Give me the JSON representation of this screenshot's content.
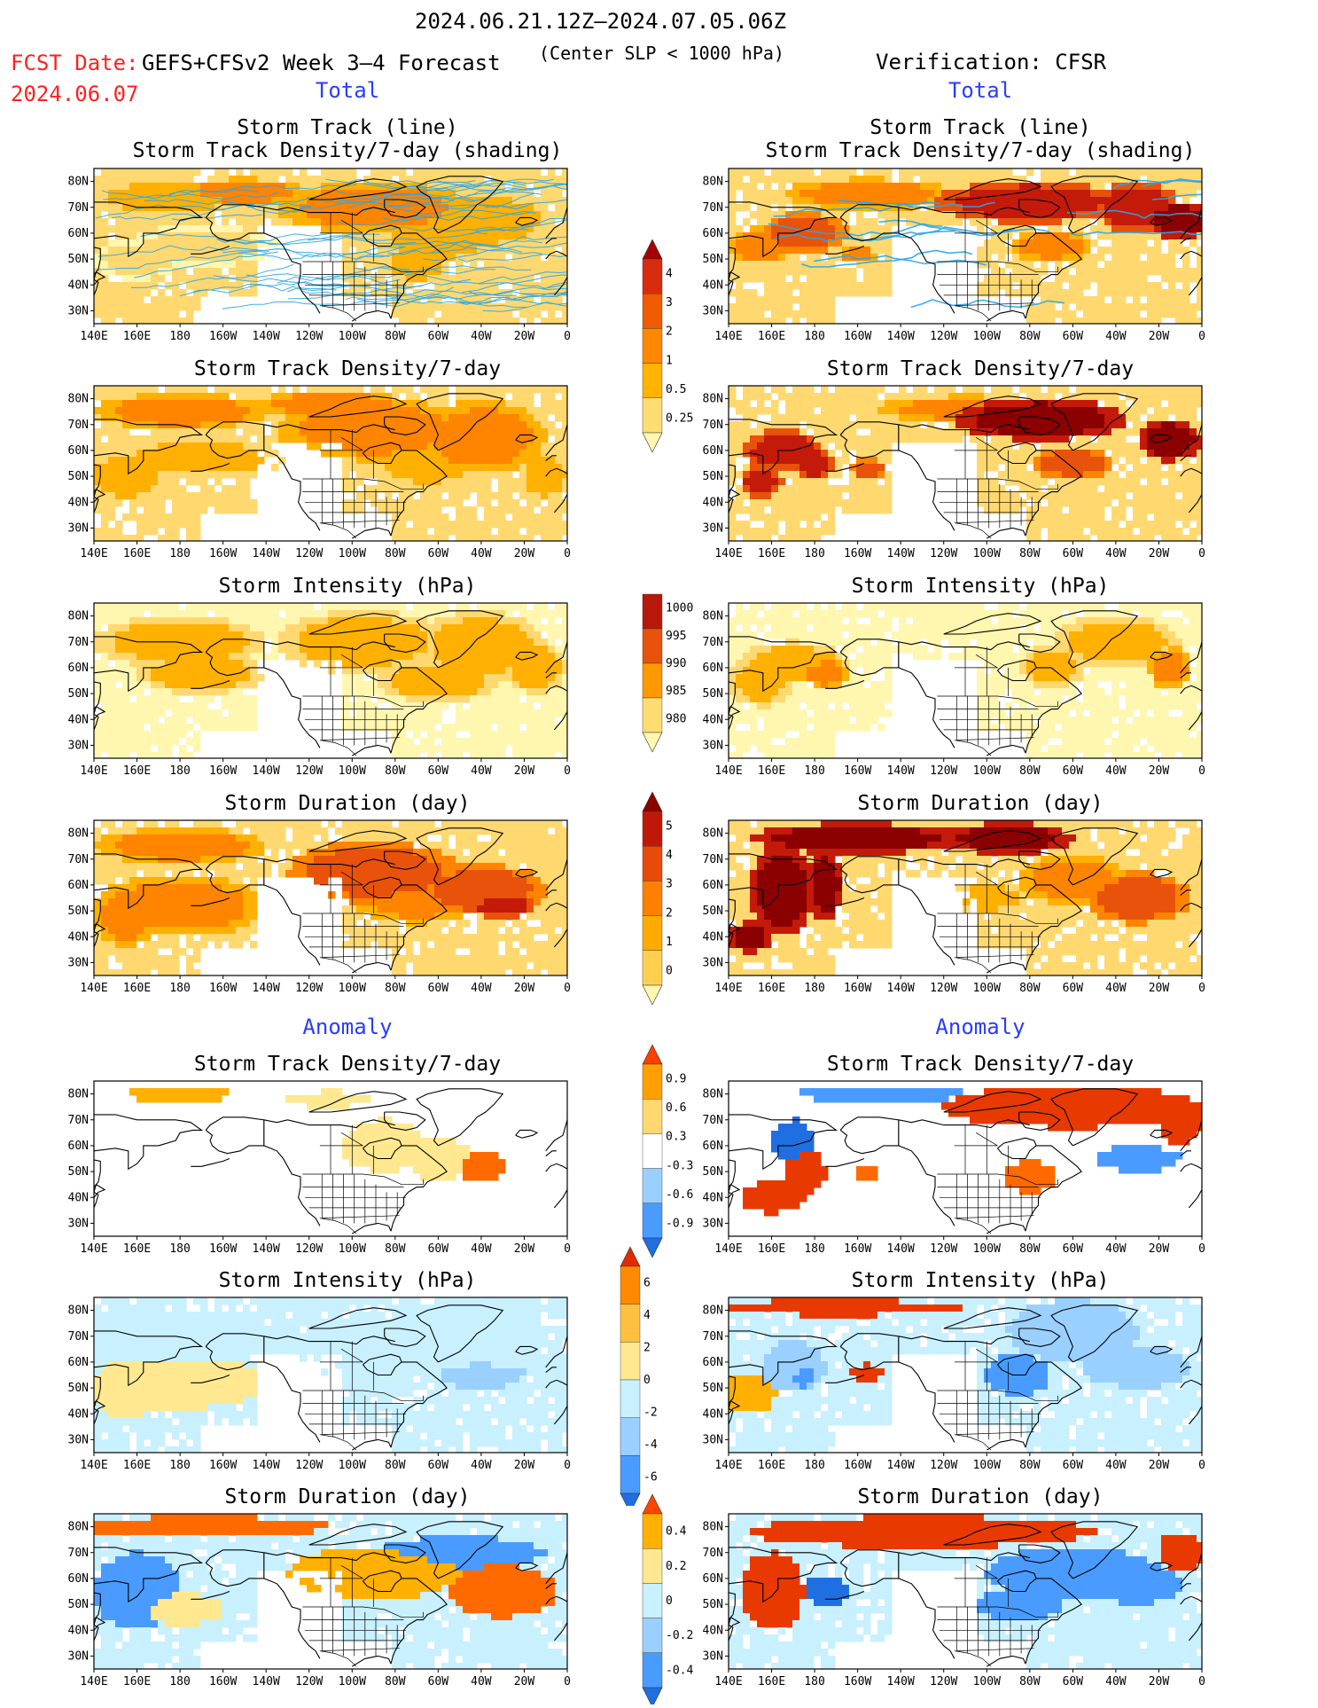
{
  "header": {
    "period": "2024.06.21.12Z–2024.07.05.06Z",
    "fcst_label": "FCST Date:",
    "model": "GEFS+CFSv2 Week 3–4 Forecast",
    "center_slp": "(Center SLP < 1000 hPa)",
    "verification": "Verification: CFSR",
    "fcst_date": "2024.06.07"
  },
  "sections": {
    "total_left": "Total",
    "total_right": "Total",
    "anomaly_left": "Anomaly",
    "anomaly_right": "Anomaly"
  },
  "titles": {
    "track_line": "Storm Track (line)",
    "track_density_shading": "Storm Track Density/7-day (shading)",
    "track_density": "Storm Track Density/7-day",
    "intensity": "Storm Intensity (hPa)",
    "duration": "Storm Duration (day)"
  },
  "axes": {
    "lat_labels": [
      "80N",
      "70N",
      "60N",
      "50N",
      "40N",
      "30N"
    ],
    "lon_labels": [
      "140E",
      "160E",
      "180",
      "160W",
      "140W",
      "120W",
      "100W",
      "80W",
      "60W",
      "40W",
      "20W",
      "0"
    ]
  },
  "colorbars": {
    "density_total": {
      "labels": [
        "4",
        "3",
        "2",
        "1",
        "0.5",
        "0.25"
      ],
      "colors": [
        "#fff6b0",
        "#ffdd70",
        "#ffb400",
        "#ff8800",
        "#f05a00",
        "#d82c0e",
        "#a80000"
      ]
    },
    "intensity_total": {
      "labels": [
        "1000",
        "995",
        "990",
        "985",
        "980"
      ],
      "colors": [
        "#fff6b0",
        "#ffdd70",
        "#ff9900",
        "#e8520a",
        "#b8180a",
        "#8b0000"
      ]
    },
    "duration_total": {
      "labels": [
        "5",
        "4",
        "3",
        "2",
        "1",
        "0"
      ],
      "colors": [
        "#fff6b0",
        "#ffd050",
        "#ffaa00",
        "#ff8000",
        "#e84a0a",
        "#c01808",
        "#8b0000"
      ]
    },
    "density_anom": {
      "labels": [
        "0.9",
        "0.6",
        "0.3",
        "-0.3",
        "-0.6",
        "-0.9"
      ],
      "colors": [
        "#1f6fe0",
        "#4a9bff",
        "#9ad0ff",
        "#ffffff",
        "#ffd870",
        "#ffa000",
        "#ff3f00"
      ]
    },
    "intensity_anom": {
      "labels": [
        "6",
        "4",
        "2",
        "0",
        "-2",
        "-4",
        "-6"
      ],
      "colors": [
        "#1f6fe0",
        "#4a9bff",
        "#9ad0ff",
        "#c8f0ff",
        "#ffe890",
        "#ffc040",
        "#ff8a00",
        "#e02c00"
      ]
    },
    "duration_anom": {
      "labels": [
        "0.4",
        "0.2",
        "0",
        "-0.2",
        "-0.4"
      ],
      "colors": [
        "#1f6fe0",
        "#4a9bff",
        "#9ad0ff",
        "#c8f0ff",
        "#ffe890",
        "#ffb000",
        "#ff4500"
      ]
    }
  },
  "colors": {
    "title_red": "#ff2020",
    "section_blue": "#2a3cff",
    "track_line": "#2aa6e6"
  }
}
